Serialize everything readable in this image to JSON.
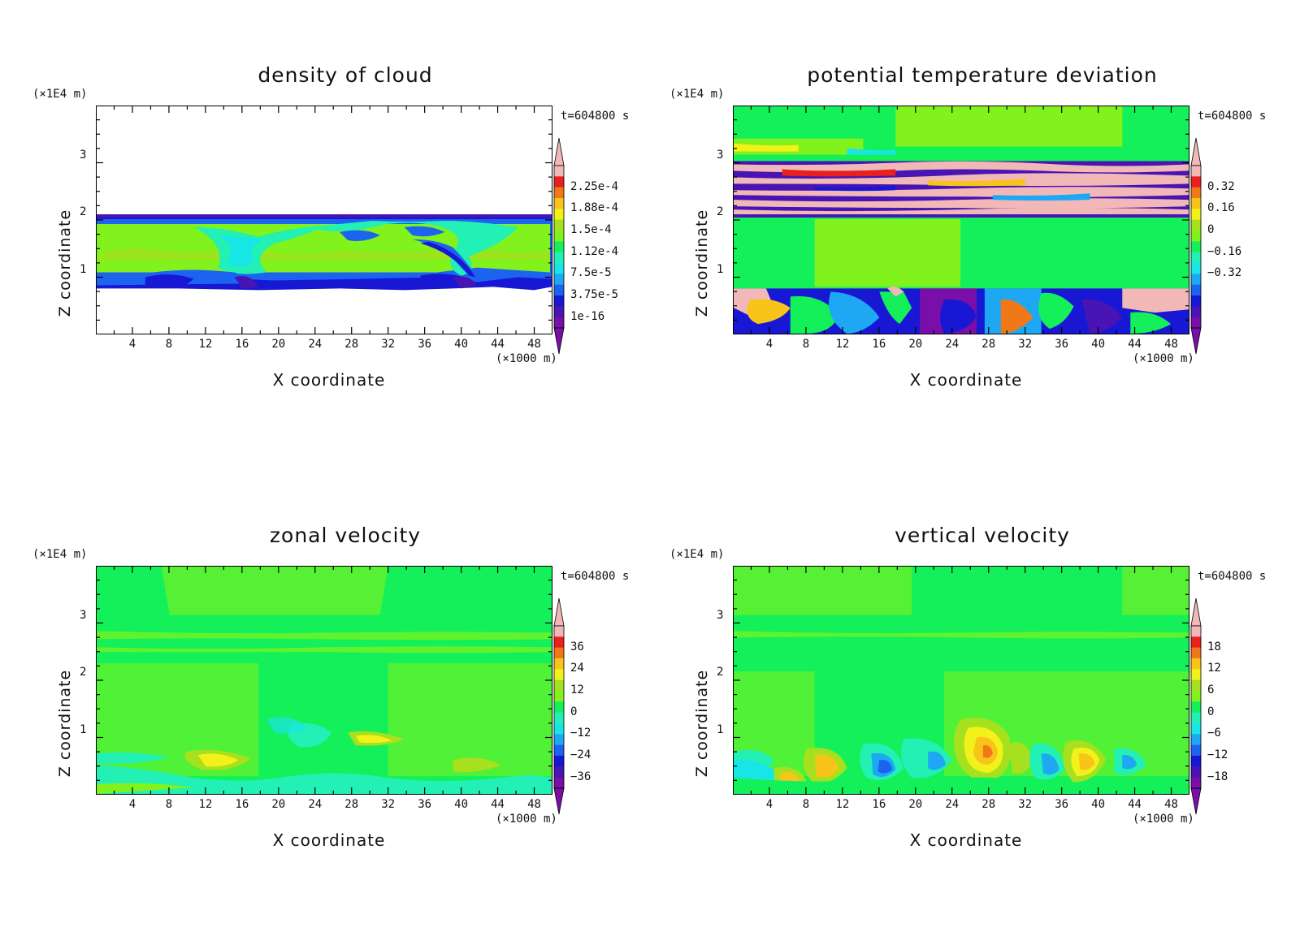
{
  "panels": [
    {
      "title": "density of cloud",
      "z_unit": "(×1E4 m)",
      "time": "t=604800 s",
      "x_unit": "(×1000 m)",
      "x_label": "X coordinate",
      "y_label": "Z coordinate",
      "x_ticks": [
        "4",
        "8",
        "12",
        "16",
        "20",
        "24",
        "28",
        "32",
        "36",
        "40",
        "44",
        "48"
      ],
      "y_ticks": [
        "1",
        "2",
        "3"
      ],
      "colorbar_labels": [
        "2.25e-4",
        "1.88e-4",
        "1.5e-4",
        "1.12e-4",
        "7.5e-5",
        "3.75e-5",
        "1e-16"
      ]
    },
    {
      "title": "potential temperature deviation",
      "z_unit": "(×1E4 m)",
      "time": "t=604800 s",
      "x_unit": "(×1000 m)",
      "x_label": "X coordinate",
      "y_label": "Z coordinate",
      "x_ticks": [
        "4",
        "8",
        "12",
        "16",
        "20",
        "24",
        "28",
        "32",
        "36",
        "40",
        "44",
        "48"
      ],
      "y_ticks": [
        "1",
        "2",
        "3"
      ],
      "colorbar_labels": [
        "0.32",
        "0.16",
        "0",
        "−0.16",
        "−0.32"
      ]
    },
    {
      "title": "zonal velocity",
      "z_unit": "(×1E4 m)",
      "time": "t=604800 s",
      "x_unit": "(×1000 m)",
      "x_label": "X coordinate",
      "y_label": "Z coordinate",
      "x_ticks": [
        "4",
        "8",
        "12",
        "16",
        "20",
        "24",
        "28",
        "32",
        "36",
        "40",
        "44",
        "48"
      ],
      "y_ticks": [
        "1",
        "2",
        "3"
      ],
      "colorbar_labels": [
        "36",
        "24",
        "12",
        "0",
        "−12",
        "−24",
        "−36"
      ]
    },
    {
      "title": "vertical velocity",
      "z_unit": "(×1E4 m)",
      "time": "t=604800 s",
      "x_unit": "(×1000 m)",
      "x_label": "X coordinate",
      "y_label": "Z coordinate",
      "x_ticks": [
        "4",
        "8",
        "12",
        "16",
        "20",
        "24",
        "28",
        "32",
        "36",
        "40",
        "44",
        "48"
      ],
      "y_ticks": [
        "1",
        "2",
        "3"
      ],
      "colorbar_labels": [
        "18",
        "12",
        "6",
        "0",
        "−6",
        "−12",
        "−18"
      ]
    }
  ],
  "chart_data": [
    {
      "type": "heatmap",
      "title": "density of cloud",
      "xlabel": "X coordinate",
      "x_unit": "×1000 m",
      "xlim": [
        0,
        50
      ],
      "ylabel": "Z coordinate",
      "y_unit": "×1E4 m",
      "ylim": [
        0,
        4
      ],
      "time": "t=604800 s",
      "colorbar": [
        0.000225,
        0.000188,
        0.00015,
        0.000112,
        7.5e-05,
        3.75e-05,
        1e-16
      ],
      "palette": [
        "#f2b8b8",
        "#e8211e",
        "#f07818",
        "#f8c41a",
        "#f2f21a",
        "#a6e01e",
        "#82f21c",
        "#14f05a",
        "#22f0b4",
        "#18e6e6",
        "#1ea8f4",
        "#1c64f0",
        "#1818d4",
        "#4814b4",
        "#7a0ea8"
      ]
    },
    {
      "type": "heatmap",
      "title": "potential temperature deviation",
      "xlabel": "X coordinate",
      "x_unit": "×1000 m",
      "xlim": [
        0,
        50
      ],
      "ylabel": "Z coordinate",
      "y_unit": "×1E4 m",
      "ylim": [
        0,
        4
      ],
      "time": "t=604800 s",
      "colorbar": [
        0.32,
        0.16,
        0,
        -0.16,
        -0.32
      ]
    },
    {
      "type": "heatmap",
      "title": "zonal velocity",
      "xlabel": "X coordinate",
      "x_unit": "×1000 m",
      "xlim": [
        0,
        50
      ],
      "ylabel": "Z coordinate",
      "y_unit": "×1E4 m",
      "ylim": [
        0,
        4
      ],
      "time": "t=604800 s",
      "colorbar": [
        36,
        24,
        12,
        0,
        -12,
        -24,
        -36
      ]
    },
    {
      "type": "heatmap",
      "title": "vertical velocity",
      "xlabel": "X coordinate",
      "x_unit": "×1000 m",
      "xlim": [
        0,
        50
      ],
      "ylabel": "Z coordinate",
      "y_unit": "×1E4 m",
      "ylim": [
        0,
        4
      ],
      "time": "t=604800 s",
      "colorbar": [
        18,
        12,
        6,
        0,
        -6,
        -12,
        -18
      ]
    }
  ]
}
